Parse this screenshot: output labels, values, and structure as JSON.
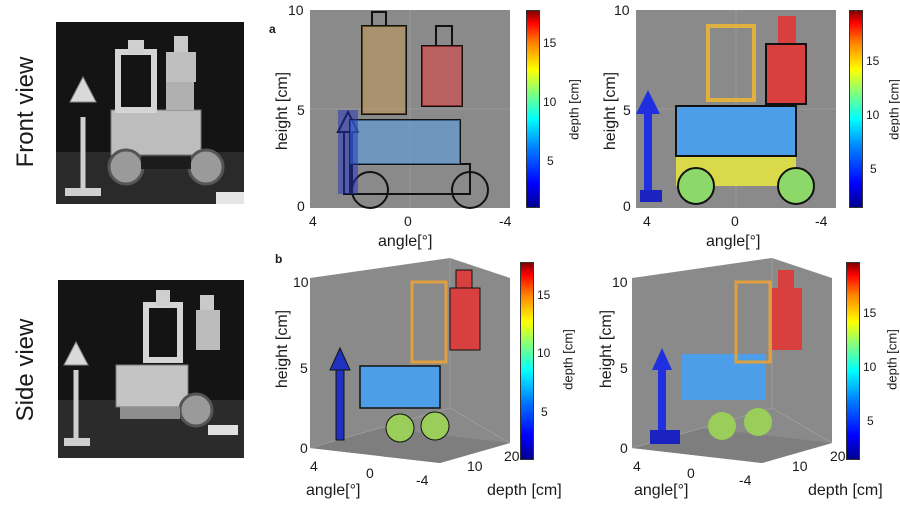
{
  "row_labels": {
    "front": "Front view",
    "side": "Side view"
  },
  "panel_letters": {
    "a": "a",
    "b": "b"
  },
  "axes": {
    "height_label": "height [cm]",
    "angle_label": "angle[°]",
    "depth_label": "depth [cm]",
    "height_ticks": [
      "0",
      "5",
      "10"
    ],
    "angle_ticks": [
      "4",
      "0",
      "-4"
    ],
    "depth_ticks": [
      "10",
      "20"
    ]
  },
  "colorbars": {
    "left": {
      "label": "depth [cm]",
      "ticks": [
        "5",
        "10",
        "15"
      ]
    },
    "right": {
      "label": "depth [cm]",
      "ticks": [
        "5",
        "10",
        "15"
      ]
    }
  },
  "colors": {
    "panel_bg": "#8a8a8a",
    "photo_bg": "#141414"
  }
}
